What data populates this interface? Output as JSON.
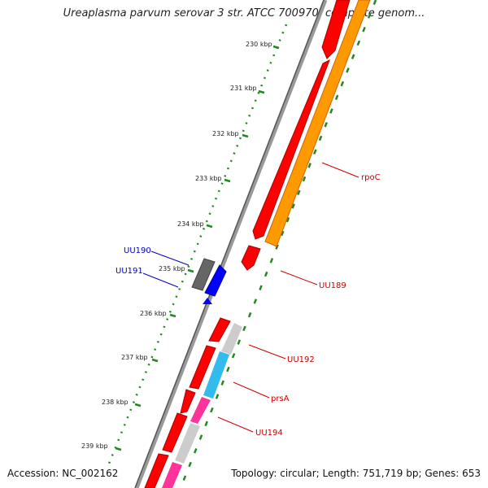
{
  "title": "Ureaplasma parvum serovar 3 str. ATCC 700970, complete genom...",
  "footer": {
    "accession": "Accession: NC_002162",
    "summary": "Topology: circular; Length: 751,719 bp; Genes: 653"
  },
  "ticks": [
    "230 kbp",
    "231 kbp",
    "232 kbp",
    "233 kbp",
    "234 kbp",
    "235 kbp",
    "236 kbp",
    "237 kbp",
    "238 kbp",
    "239 kbp"
  ],
  "gene_labels": {
    "rpoC": "rpoC",
    "uu189": "UU189",
    "uu190": "UU190",
    "uu191": "UU191",
    "uu192": "UU192",
    "prsA": "prsA",
    "uu194": "UU194"
  },
  "colors": {
    "forward_cds": "#ff0000",
    "reverse_cds": "#0000ff",
    "orange_feature": "#ff9900",
    "pink_feature": "#ff3399",
    "cyan_feature": "#33bbee",
    "grey_feature": "#cccccc",
    "backbone": "#888888",
    "tick_green": "#228822"
  }
}
